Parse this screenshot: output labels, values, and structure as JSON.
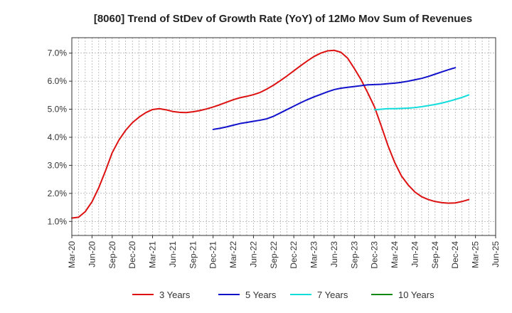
{
  "chart_data": {
    "type": "line",
    "title": "[8060]  Trend of StDev of Growth Rate (YoY) of 12Mo Mov Sum of Revenues",
    "xlabel": "",
    "ylabel": "",
    "x_ticks": [
      "Mar-20",
      "Jun-20",
      "Sep-20",
      "Dec-20",
      "Mar-21",
      "Jun-21",
      "Sep-21",
      "Dec-21",
      "Mar-22",
      "Jun-22",
      "Sep-22",
      "Dec-22",
      "Mar-23",
      "Jun-23",
      "Sep-23",
      "Dec-23",
      "Mar-24",
      "Jun-24",
      "Sep-24",
      "Dec-24",
      "Mar-25",
      "Jun-25"
    ],
    "y_ticks": [
      0.01,
      0.02,
      0.03,
      0.04,
      0.05,
      0.06,
      0.07
    ],
    "y_tick_labels": [
      "1.0%",
      "2.0%",
      "3.0%",
      "4.0%",
      "5.0%",
      "6.0%",
      "7.0%"
    ],
    "ylim": [
      0.005,
      0.0755
    ],
    "x_range_months": [
      0,
      63
    ],
    "grid": true,
    "legend_position": "bottom",
    "series": [
      {
        "name": "3 Years",
        "color": "#dd1111",
        "start_month": 0,
        "values": [
          0.0112,
          0.0115,
          0.0135,
          0.017,
          0.022,
          0.028,
          0.0345,
          0.039,
          0.0425,
          0.0452,
          0.0472,
          0.0488,
          0.0499,
          0.0502,
          0.0498,
          0.0492,
          0.0489,
          0.0488,
          0.0491,
          0.0495,
          0.0501,
          0.0508,
          0.0516,
          0.0525,
          0.0534,
          0.0541,
          0.0546,
          0.0552,
          0.056,
          0.0572,
          0.0586,
          0.0602,
          0.0619,
          0.0637,
          0.0655,
          0.0672,
          0.0688,
          0.07,
          0.0708,
          0.071,
          0.0703,
          0.0682,
          0.0645,
          0.0605,
          0.0558,
          0.0508,
          0.044,
          0.037,
          0.031,
          0.0262,
          0.023,
          0.0205,
          0.0188,
          0.0178,
          0.0171,
          0.0167,
          0.0165,
          0.0166,
          0.0171,
          0.0178
        ]
      },
      {
        "name": "5 Years",
        "color": "#1111cc",
        "start_month": 21,
        "values": [
          0.0428,
          0.0432,
          0.0437,
          0.0443,
          0.0449,
          0.0453,
          0.0457,
          0.0461,
          0.0466,
          0.0475,
          0.0487,
          0.0499,
          0.0511,
          0.0523,
          0.0534,
          0.0544,
          0.0553,
          0.0562,
          0.057,
          0.0575,
          0.0578,
          0.0581,
          0.0584,
          0.0587,
          0.0588,
          0.0589,
          0.0591,
          0.0593,
          0.0596,
          0.06,
          0.0605,
          0.061,
          0.0617,
          0.0625,
          0.0633,
          0.0641,
          0.0648
        ]
      },
      {
        "name": "7 Years",
        "color": "#11dddd",
        "start_month": 45,
        "values": [
          0.0498,
          0.05,
          0.0502,
          0.0502,
          0.0503,
          0.0504,
          0.0506,
          0.0509,
          0.0513,
          0.0517,
          0.0522,
          0.0528,
          0.0535,
          0.0542,
          0.0551
        ]
      },
      {
        "name": "10 Years",
        "color": "#118811",
        "start_month": null,
        "values": []
      }
    ]
  }
}
